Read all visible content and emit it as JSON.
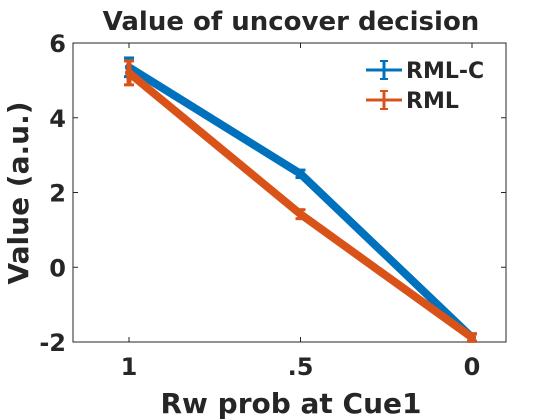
{
  "chart_data": {
    "type": "line",
    "title": "Value of uncover decision",
    "xlabel": "Rw prob at Cue1",
    "ylabel": "Value (a.u.)",
    "categories": [
      "1",
      ".5",
      "0"
    ],
    "ylim": [
      -2,
      6
    ],
    "yticks": [
      "-2",
      "0",
      "2",
      "4",
      "6"
    ],
    "grid": false,
    "legend_position": "top-right",
    "series": [
      {
        "name": "RML-C",
        "color": "#0072BD",
        "values": [
          5.35,
          2.5,
          -1.88
        ],
        "errors": [
          0.25,
          0.1,
          0.1
        ]
      },
      {
        "name": "RML",
        "color": "#D95319",
        "values": [
          5.2,
          1.42,
          -1.88
        ],
        "errors": [
          0.32,
          0.12,
          0.1
        ]
      }
    ]
  }
}
